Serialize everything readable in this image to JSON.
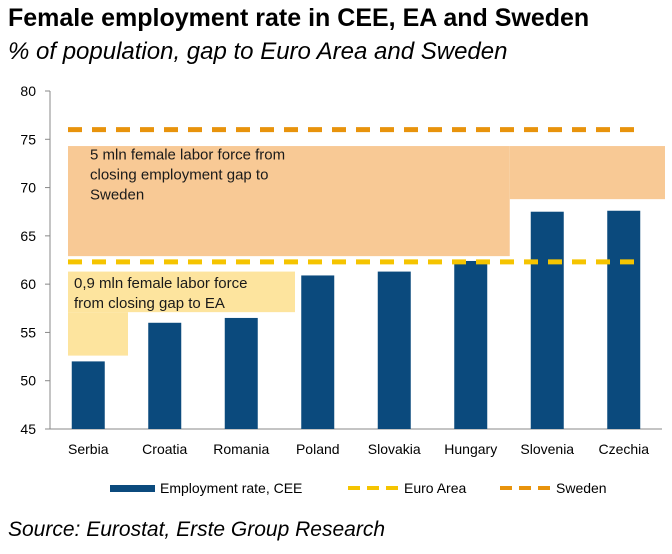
{
  "header": {
    "title": "Female employment rate in CEE, EA and Sweden",
    "subtitle": "% of population, gap to Euro Area and Sweden"
  },
  "footer": {
    "source": "Source: Eurostat, Erste Group Research"
  },
  "colors": {
    "bar": "#0b4a7d",
    "euro_area": "#f5c400",
    "sweden": "#e8930c",
    "gap_sweden_box": "#f8c995",
    "gap_ea_box": "#fde49e"
  },
  "chart_data": {
    "type": "bar",
    "categories": [
      "Serbia",
      "Croatia",
      "Romania",
      "Poland",
      "Slovakia",
      "Hungary",
      "Slovenia",
      "Czechia"
    ],
    "series": [
      {
        "name": "Employment rate, CEE",
        "values": [
          52.0,
          56.0,
          56.5,
          60.9,
          61.3,
          62.4,
          67.5,
          67.6
        ]
      }
    ],
    "reference_lines": [
      {
        "name": "Euro Area",
        "value": 62.3
      },
      {
        "name": "Sweden",
        "value": 76.0
      }
    ],
    "ylim": [
      45,
      80
    ],
    "yticks": [
      45,
      50,
      55,
      60,
      65,
      70,
      75,
      80
    ],
    "ytick_labels": [
      "45",
      "50",
      "55",
      "60",
      "65",
      "70",
      "75",
      "80"
    ],
    "annotations": [
      {
        "text_lines": [
          "5 mln female labor force from",
          "closing employment gap to",
          "Sweden"
        ]
      },
      {
        "text_lines": [
          "0,9 mln female labor force",
          "from closing gap to EA"
        ]
      }
    ],
    "legend": {
      "position": "bottom",
      "entries": [
        "Employment rate, CEE",
        "Euro Area",
        "Sweden"
      ]
    },
    "grid": false
  }
}
